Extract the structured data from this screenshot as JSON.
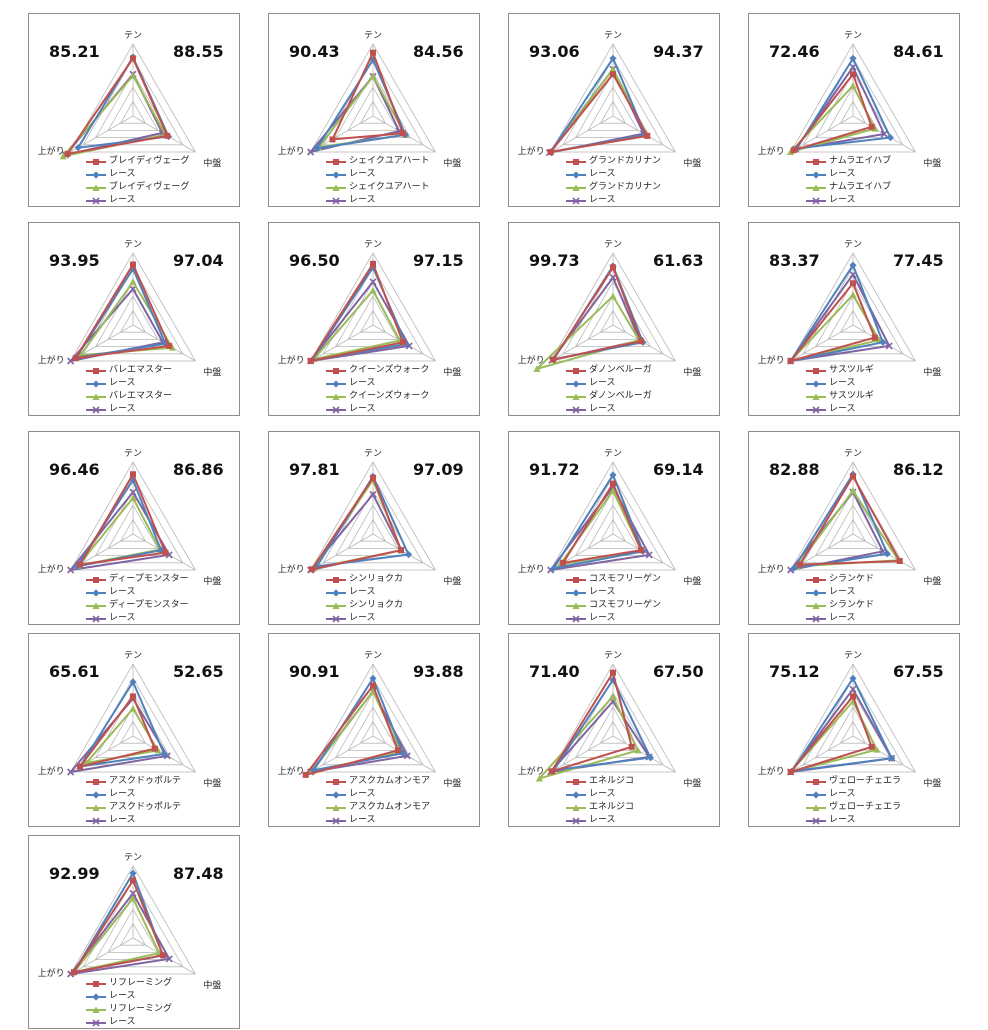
{
  "chart_data": [
    {
      "type": "radar",
      "axes": [
        "テン",
        "中盤",
        "上がり"
      ],
      "scores": [
        "85.21",
        "88.55"
      ],
      "legend": [
        "ブレイディヴェーグ",
        "レース",
        "ブレイディヴェーグ",
        "レース"
      ],
      "series": [
        {
          "name": "ブレイディヴェーグ",
          "values": [
            0.8,
            0.55,
            1.05
          ]
        },
        {
          "name": "レース",
          "values": [
            0.82,
            0.57,
            0.88
          ]
        },
        {
          "name": "ブレイディヴェーグ",
          "values": [
            0.56,
            0.52,
            1.12
          ]
        },
        {
          "name": "レース",
          "values": [
            0.58,
            0.47,
            1.08
          ]
        }
      ]
    },
    {
      "type": "radar",
      "axes": [
        "テン",
        "中盤",
        "上がり"
      ],
      "scores": [
        "90.43",
        "84.56"
      ],
      "legend": [
        "シェイクユアハート",
        "レース",
        "シェイクユアハート",
        "レース"
      ],
      "series": [
        {
          "name": "シェイクユアハート",
          "values": [
            0.88,
            0.48,
            0.65
          ]
        },
        {
          "name": "レース",
          "values": [
            0.78,
            0.52,
            0.9
          ]
        },
        {
          "name": "シェイクユアハート",
          "values": [
            0.55,
            0.52,
            0.87
          ]
        },
        {
          "name": "レース",
          "values": [
            0.55,
            0.42,
            1.0
          ]
        }
      ]
    },
    {
      "type": "radar",
      "axes": [
        "テン",
        "中盤",
        "上がり"
      ],
      "scores": [
        "93.06",
        "94.37"
      ],
      "legend": [
        "グランドカリナン",
        "レース",
        "グランドカリナン",
        "レース"
      ],
      "series": [
        {
          "name": "グランドカリナン",
          "values": [
            0.58,
            0.55,
            1.0
          ]
        },
        {
          "name": "レース",
          "values": [
            0.8,
            0.52,
            1.0
          ]
        },
        {
          "name": "グランドカリナン",
          "values": [
            0.65,
            0.55,
            1.0
          ]
        },
        {
          "name": "レース",
          "values": [
            0.65,
            0.49,
            1.02
          ]
        }
      ]
    },
    {
      "type": "radar",
      "axes": [
        "テン",
        "中盤",
        "上がり"
      ],
      "scores": [
        "72.46",
        "84.61"
      ],
      "legend": [
        "ナムラエイハブ",
        "レース",
        "ナムラエイハブ",
        "レース"
      ],
      "series": [
        {
          "name": "ナムラエイハブ",
          "values": [
            0.58,
            0.3,
            0.95
          ]
        },
        {
          "name": "レース",
          "values": [
            0.8,
            0.6,
            0.9
          ]
        },
        {
          "name": "ナムラエイハブ",
          "values": [
            0.42,
            0.35,
            1.0
          ]
        },
        {
          "name": "レース",
          "values": [
            0.68,
            0.5,
            0.92
          ]
        }
      ]
    },
    {
      "type": "radar",
      "axes": [
        "テン",
        "中盤",
        "上がり"
      ],
      "scores": [
        "93.95",
        "97.04"
      ],
      "legend": [
        "バレエマスター",
        "レース",
        "バレエマスター",
        "レース"
      ],
      "series": [
        {
          "name": "バレエマスター",
          "values": [
            0.84,
            0.58,
            0.92
          ]
        },
        {
          "name": "レース",
          "values": [
            0.78,
            0.52,
            0.91
          ]
        },
        {
          "name": "バレエマスター",
          "values": [
            0.6,
            0.63,
            0.84
          ]
        },
        {
          "name": "レース",
          "values": [
            0.5,
            0.48,
            1.0
          ]
        }
      ]
    },
    {
      "type": "radar",
      "axes": [
        "テン",
        "中盤",
        "上がり"
      ],
      "scores": [
        "96.50",
        "97.15"
      ],
      "legend": [
        "クイーンズウォーク",
        "レース",
        "クイーンズウォーク",
        "レース"
      ],
      "series": [
        {
          "name": "クイーンズウォーク",
          "values": [
            0.85,
            0.48,
            1.0
          ]
        },
        {
          "name": "レース",
          "values": [
            0.8,
            0.53,
            0.98
          ]
        },
        {
          "name": "クイーンズウォーク",
          "values": [
            0.48,
            0.43,
            0.95
          ]
        },
        {
          "name": "レース",
          "values": [
            0.6,
            0.58,
            1.0
          ]
        }
      ]
    },
    {
      "type": "radar",
      "axes": [
        "テン",
        "中盤",
        "上がり"
      ],
      "scores": [
        "99.73",
        "61.63"
      ],
      "legend": [
        "ダノンベルーガ",
        "レース",
        "ダノンベルーガ",
        "レース"
      ],
      "series": [
        {
          "name": "ダノンベルーガ",
          "values": [
            0.8,
            0.45,
            0.96
          ]
        },
        {
          "name": "レース",
          "values": [
            0.82,
            0.48,
            0.95
          ]
        },
        {
          "name": "ダノンベルーガ",
          "values": [
            0.4,
            0.42,
            1.22
          ]
        },
        {
          "name": "レース",
          "values": [
            0.66,
            0.43,
            0.98
          ]
        }
      ]
    },
    {
      "type": "radar",
      "axes": [
        "テン",
        "中盤",
        "上がり"
      ],
      "scores": [
        "83.37",
        "77.45"
      ],
      "legend": [
        "サスツルギ",
        "レース",
        "サスツルギ",
        "レース"
      ],
      "series": [
        {
          "name": "サスツルギ",
          "values": [
            0.58,
            0.35,
            1.0
          ]
        },
        {
          "name": "レース",
          "values": [
            0.83,
            0.48,
            1.0
          ]
        },
        {
          "name": "サスツルギ",
          "values": [
            0.42,
            0.42,
            1.0
          ]
        },
        {
          "name": "レース",
          "values": [
            0.7,
            0.58,
            1.0
          ]
        }
      ]
    },
    {
      "type": "radar",
      "axes": [
        "テン",
        "中盤",
        "上がり"
      ],
      "scores": [
        "96.46",
        "86.86"
      ],
      "legend": [
        "ディープモンスター",
        "レース",
        "ディープモンスター",
        "レース"
      ],
      "series": [
        {
          "name": "ディープモンスター",
          "values": [
            0.83,
            0.52,
            0.85
          ]
        },
        {
          "name": "レース",
          "values": [
            0.75,
            0.45,
            0.9
          ]
        },
        {
          "name": "ディープモンスター",
          "values": [
            0.5,
            0.43,
            0.88
          ]
        },
        {
          "name": "レース",
          "values": [
            0.58,
            0.58,
            1.0
          ]
        }
      ]
    },
    {
      "type": "radar",
      "axes": [
        "テン",
        "中盤",
        "上がり"
      ],
      "scores": [
        "97.81",
        "97.09"
      ],
      "legend": [
        "シンリョクカ",
        "レース",
        "シンリョクカ",
        "レース"
      ],
      "series": [
        {
          "name": "シンリョクカ",
          "values": [
            0.78,
            0.45,
            0.98
          ]
        },
        {
          "name": "レース",
          "values": [
            0.8,
            0.57,
            0.9
          ]
        },
        {
          "name": "シンリョクカ",
          "values": [
            0.75,
            0.45,
            0.95
          ]
        },
        {
          "name": "レース",
          "values": [
            0.55,
            0.45,
            1.0
          ]
        }
      ]
    },
    {
      "type": "radar",
      "axes": [
        "テン",
        "中盤",
        "上がり"
      ],
      "scores": [
        "91.72",
        "69.14"
      ],
      "legend": [
        "コスモフリーゲン",
        "レース",
        "コスモフリーゲン",
        "レース"
      ],
      "series": [
        {
          "name": "コスモフリーゲン",
          "values": [
            0.7,
            0.45,
            0.8
          ]
        },
        {
          "name": "レース",
          "values": [
            0.82,
            0.48,
            0.95
          ]
        },
        {
          "name": "コスモフリーゲン",
          "values": [
            0.6,
            0.45,
            0.85
          ]
        },
        {
          "name": "レース",
          "values": [
            0.65,
            0.58,
            1.0
          ]
        }
      ]
    },
    {
      "type": "radar",
      "axes": [
        "テン",
        "中盤",
        "上がり"
      ],
      "scores": [
        "82.88",
        "86.12"
      ],
      "legend": [
        "シランケド",
        "レース",
        "シランケド",
        "レース"
      ],
      "series": [
        {
          "name": "シランケド",
          "values": [
            0.8,
            0.75,
            0.85
          ]
        },
        {
          "name": "レース",
          "values": [
            0.83,
            0.55,
            0.95
          ]
        },
        {
          "name": "シランケド",
          "values": [
            0.6,
            0.73,
            0.9
          ]
        },
        {
          "name": "レース",
          "values": [
            0.58,
            0.48,
            1.0
          ]
        }
      ]
    },
    {
      "type": "radar",
      "axes": [
        "テン",
        "中盤",
        "上がり"
      ],
      "scores": [
        "65.61",
        "52.65"
      ],
      "legend": [
        "アスクドゥポルテ",
        "レース",
        "アスクドゥポルテ",
        "レース"
      ],
      "series": [
        {
          "name": "アスクドゥポルテ",
          "values": [
            0.55,
            0.35,
            0.85
          ]
        },
        {
          "name": "レース",
          "values": [
            0.75,
            0.5,
            0.85
          ]
        },
        {
          "name": "アスクドゥポルテ",
          "values": [
            0.38,
            0.4,
            0.75
          ]
        },
        {
          "name": "レース",
          "values": [
            0.52,
            0.55,
            1.0
          ]
        }
      ]
    },
    {
      "type": "radar",
      "axes": [
        "テン",
        "中盤",
        "上がり"
      ],
      "scores": [
        "90.91",
        "93.88"
      ],
      "legend": [
        "アスクカムオンモア",
        "レース",
        "アスクカムオンモア",
        "レース"
      ],
      "series": [
        {
          "name": "アスクカムオンモア",
          "values": [
            0.7,
            0.4,
            1.08
          ]
        },
        {
          "name": "レース",
          "values": [
            0.8,
            0.48,
            0.95
          ]
        },
        {
          "name": "アスクカムオンモア",
          "values": [
            0.62,
            0.45,
            0.98
          ]
        },
        {
          "name": "レース",
          "values": [
            0.62,
            0.55,
            1.0
          ]
        }
      ]
    },
    {
      "type": "radar",
      "axes": [
        "テン",
        "中盤",
        "上がり"
      ],
      "scores": [
        "71.40",
        "67.50"
      ],
      "legend": [
        "エネルジコ",
        "レース",
        "エネルジコ",
        "レース"
      ],
      "series": [
        {
          "name": "エネルジコ",
          "values": [
            0.88,
            0.3,
            0.98
          ]
        },
        {
          "name": "レース",
          "values": [
            0.78,
            0.6,
            0.95
          ]
        },
        {
          "name": "エネルジコ",
          "values": [
            0.55,
            0.4,
            1.18
          ]
        },
        {
          "name": "レース",
          "values": [
            0.48,
            0.58,
            1.0
          ]
        }
      ]
    },
    {
      "type": "radar",
      "axes": [
        "テン",
        "中盤",
        "上がり"
      ],
      "scores": [
        "75.12",
        "67.55"
      ],
      "legend": [
        "ヴェローチェエラ",
        "レース",
        "ヴェローチェエラ",
        "レース"
      ],
      "series": [
        {
          "name": "ヴェローチェエラ",
          "values": [
            0.55,
            0.3,
            1.0
          ]
        },
        {
          "name": "レース",
          "values": [
            0.8,
            0.62,
            0.98
          ]
        },
        {
          "name": "ヴェローチェエラ",
          "values": [
            0.48,
            0.38,
            1.0
          ]
        },
        {
          "name": "レース",
          "values": [
            0.65,
            0.62,
            1.0
          ]
        }
      ]
    },
    {
      "type": "radar",
      "axes": [
        "テン",
        "中盤",
        "上がり"
      ],
      "scores": [
        "92.99",
        "87.48"
      ],
      "legend": [
        "リフレーミング",
        "レース",
        "リフレーミング",
        "レース"
      ],
      "series": [
        {
          "name": "リフレーミング",
          "values": [
            0.8,
            0.48,
            0.95
          ]
        },
        {
          "name": "レース",
          "values": [
            0.9,
            0.48,
            0.95
          ]
        },
        {
          "name": "リフレーミング",
          "values": [
            0.55,
            0.42,
            0.95
          ]
        },
        {
          "name": "レース",
          "values": [
            0.62,
            0.58,
            1.0
          ]
        }
      ]
    }
  ],
  "colors": {
    "series": [
      "#c0504d",
      "#4f81bd",
      "#9bbb59",
      "#8064a2"
    ],
    "grid": "#b9b9b9"
  },
  "markers": [
    "square",
    "diamond",
    "triangle",
    "x"
  ]
}
